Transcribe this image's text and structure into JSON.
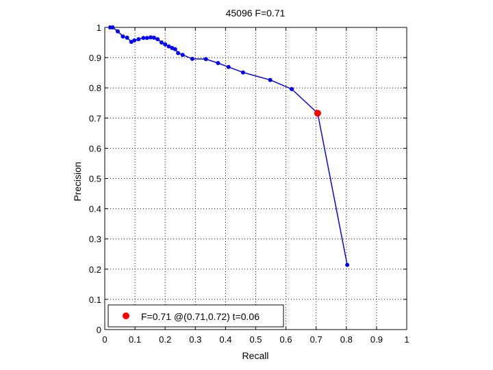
{
  "chart_data": {
    "type": "line",
    "title": "45096 F=0.71",
    "xlabel": "Recall",
    "ylabel": "Precision",
    "xlim": [
      0,
      1
    ],
    "ylim": [
      0,
      1
    ],
    "xticks": [
      "0",
      "0.1",
      "0.2",
      "0.3",
      "0.4",
      "0.5",
      "0.6",
      "0.7",
      "0.8",
      "0.9",
      "1"
    ],
    "yticks": [
      "0",
      "0.1",
      "0.2",
      "0.3",
      "0.4",
      "0.5",
      "0.6",
      "0.7",
      "0.8",
      "0.9",
      "1"
    ],
    "grid": true,
    "legend_position": "bottom-left",
    "series": [
      {
        "color": "#0000ff",
        "marker": "dot",
        "x": [
          0.018,
          0.026,
          0.043,
          0.06,
          0.074,
          0.088,
          0.098,
          0.112,
          0.128,
          0.14,
          0.152,
          0.163,
          0.175,
          0.188,
          0.2,
          0.212,
          0.223,
          0.233,
          0.243,
          0.258,
          0.29,
          0.335,
          0.375,
          0.41,
          0.458,
          0.548,
          0.619,
          0.705,
          0.803
        ],
        "y": [
          1.0,
          1.0,
          0.987,
          0.97,
          0.966,
          0.952,
          0.957,
          0.961,
          0.965,
          0.965,
          0.967,
          0.966,
          0.961,
          0.95,
          0.944,
          0.937,
          0.932,
          0.928,
          0.915,
          0.909,
          0.896,
          0.895,
          0.882,
          0.869,
          0.851,
          0.826,
          0.796,
          0.716,
          0.214
        ]
      }
    ],
    "best_point": {
      "label": "F=0.71 @(0.71,0.72) t=0.06",
      "x": 0.705,
      "y": 0.716,
      "color": "#ff0000"
    }
  }
}
